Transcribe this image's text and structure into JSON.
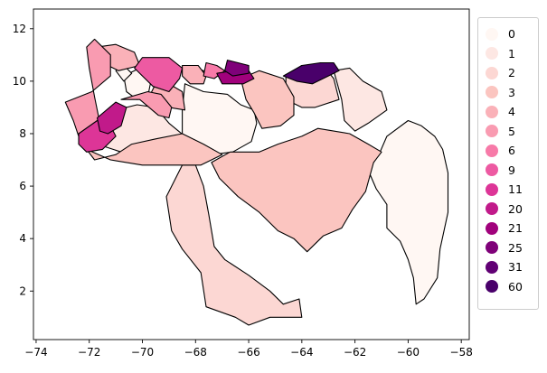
{
  "chart_data": {
    "type": "choropleth",
    "x_ticks": [
      "−74",
      "−72",
      "−70",
      "−68",
      "−66",
      "−64",
      "−62",
      "−60",
      "−58"
    ],
    "y_ticks": [
      "2",
      "4",
      "6",
      "8",
      "10",
      "12"
    ],
    "xlim": [
      -74.1,
      -57.7
    ],
    "ylim": [
      0.15,
      12.75
    ],
    "legend": {
      "placement": "center-right",
      "entries": [
        {
          "label": "0",
          "color": "#fff7f3"
        },
        {
          "label": "1",
          "color": "#fde7e3"
        },
        {
          "label": "2",
          "color": "#fcd7d3"
        },
        {
          "label": "3",
          "color": "#fbc5c0"
        },
        {
          "label": "4",
          "color": "#fab1b8"
        },
        {
          "label": "5",
          "color": "#f99bb1"
        },
        {
          "label": "6",
          "color": "#f77aa8"
        },
        {
          "label": "9",
          "color": "#ed5aa2"
        },
        {
          "label": "11",
          "color": "#dd3597"
        },
        {
          "label": "20",
          "color": "#c11a8a"
        },
        {
          "label": "21",
          "color": "#a1017c"
        },
        {
          "label": "25",
          "color": "#7f0179"
        },
        {
          "label": "31",
          "color": "#610074"
        },
        {
          "label": "60",
          "color": "#49006a"
        }
      ]
    },
    "regions": [
      {
        "label": "0",
        "points": [
          [
            -68.4,
            9.9
          ],
          [
            -67.7,
            9.6
          ],
          [
            -66.8,
            9.5
          ],
          [
            -66.3,
            9.1
          ],
          [
            -65.8,
            8.9
          ],
          [
            -65.7,
            8.4
          ],
          [
            -65.9,
            7.7
          ],
          [
            -66.6,
            7.3
          ],
          [
            -67.4,
            7.2
          ],
          [
            -68.1,
            7.3
          ],
          [
            -68.5,
            7.9
          ],
          [
            -68.5,
            8.9
          ]
        ]
      },
      {
        "label": "0",
        "points": [
          [
            -60.8,
            7.9
          ],
          [
            -60.0,
            8.5
          ],
          [
            -59.5,
            8.3
          ],
          [
            -59.0,
            7.9
          ],
          [
            -58.7,
            7.4
          ],
          [
            -58.5,
            6.5
          ],
          [
            -58.5,
            5.0
          ],
          [
            -58.8,
            3.6
          ],
          [
            -58.9,
            2.5
          ],
          [
            -59.4,
            1.7
          ],
          [
            -59.7,
            1.5
          ],
          [
            -59.8,
            2.5
          ],
          [
            -60.0,
            3.2
          ],
          [
            -60.3,
            3.9
          ],
          [
            -60.8,
            4.4
          ],
          [
            -60.8,
            5.3
          ],
          [
            -61.2,
            5.9
          ],
          [
            -61.5,
            6.6
          ],
          [
            -61.1,
            7.2
          ]
        ]
      },
      {
        "label": "0",
        "points": [
          [
            -70.7,
            10.2
          ],
          [
            -70.1,
            10.5
          ],
          [
            -69.7,
            9.9
          ],
          [
            -69.8,
            9.4
          ],
          [
            -70.2,
            9.3
          ],
          [
            -70.6,
            9.6
          ]
        ]
      },
      {
        "label": "0",
        "points": [
          [
            -71.0,
            10.4
          ],
          [
            -70.7,
            10.6
          ],
          [
            -70.4,
            10.3
          ],
          [
            -70.7,
            10.0
          ]
        ]
      },
      {
        "label": "1",
        "points": [
          [
            -71.7,
            7.6
          ],
          [
            -70.8,
            7.3
          ],
          [
            -69.8,
            7.2
          ],
          [
            -69.0,
            7.6
          ],
          [
            -68.4,
            7.9
          ],
          [
            -69.0,
            8.4
          ],
          [
            -69.5,
            9.0
          ],
          [
            -70.2,
            9.1
          ],
          [
            -71.0,
            8.9
          ],
          [
            -71.7,
            8.3
          ]
        ]
      },
      {
        "label": "1",
        "points": [
          [
            -62.8,
            10.4
          ],
          [
            -62.2,
            10.5
          ],
          [
            -61.7,
            10.0
          ],
          [
            -61.0,
            9.6
          ],
          [
            -60.8,
            8.9
          ],
          [
            -61.5,
            8.4
          ],
          [
            -62.0,
            8.1
          ],
          [
            -62.4,
            8.5
          ],
          [
            -62.5,
            9.3
          ]
        ]
      },
      {
        "label": "1",
        "points": [
          [
            -68.4,
            10.3
          ],
          [
            -68.0,
            10.5
          ],
          [
            -67.7,
            10.4
          ],
          [
            -67.8,
            10.1
          ],
          [
            -68.1,
            10.0
          ]
        ]
      },
      {
        "label": "2",
        "points": [
          [
            -68.5,
            6.8
          ],
          [
            -68.0,
            6.8
          ],
          [
            -67.7,
            6.0
          ],
          [
            -67.5,
            4.9
          ],
          [
            -67.3,
            3.7
          ],
          [
            -66.9,
            3.2
          ],
          [
            -66.0,
            2.6
          ],
          [
            -65.2,
            2.0
          ],
          [
            -64.7,
            1.5
          ],
          [
            -64.1,
            1.7
          ],
          [
            -64.0,
            1.0
          ],
          [
            -65.2,
            1.0
          ],
          [
            -66.0,
            0.7
          ],
          [
            -66.5,
            1.0
          ],
          [
            -67.6,
            1.4
          ],
          [
            -67.8,
            2.7
          ],
          [
            -68.5,
            3.6
          ],
          [
            -68.9,
            4.3
          ],
          [
            -69.1,
            5.6
          ],
          [
            -68.8,
            6.2
          ]
        ]
      },
      {
        "label": "2",
        "points": [
          [
            -64.6,
            10.2
          ],
          [
            -64.0,
            10.6
          ],
          [
            -63.2,
            10.6
          ],
          [
            -62.8,
            10.1
          ],
          [
            -62.6,
            9.3
          ],
          [
            -63.5,
            9.0
          ],
          [
            -64.0,
            9.0
          ],
          [
            -64.6,
            9.3
          ]
        ]
      },
      {
        "label": "3",
        "points": [
          [
            -66.7,
            7.3
          ],
          [
            -65.6,
            7.3
          ],
          [
            -64.9,
            7.6
          ],
          [
            -64.0,
            7.9
          ],
          [
            -63.4,
            8.2
          ],
          [
            -62.2,
            8.0
          ],
          [
            -61.5,
            7.6
          ],
          [
            -61.0,
            7.3
          ],
          [
            -61.3,
            6.9
          ],
          [
            -61.6,
            5.8
          ],
          [
            -62.1,
            5.1
          ],
          [
            -62.5,
            4.4
          ],
          [
            -63.2,
            4.1
          ],
          [
            -63.8,
            3.5
          ],
          [
            -64.3,
            4.0
          ],
          [
            -64.9,
            4.3
          ],
          [
            -65.6,
            5.0
          ],
          [
            -66.4,
            5.6
          ],
          [
            -67.1,
            6.3
          ],
          [
            -67.4,
            6.9
          ]
        ]
      },
      {
        "label": "3",
        "points": [
          [
            -72.1,
            7.4
          ],
          [
            -71.2,
            7.0
          ],
          [
            -70.0,
            6.8
          ],
          [
            -68.8,
            6.8
          ],
          [
            -67.8,
            6.8
          ],
          [
            -67.0,
            7.2
          ],
          [
            -67.7,
            7.6
          ],
          [
            -68.5,
            8.0
          ],
          [
            -69.5,
            7.8
          ],
          [
            -70.4,
            7.6
          ],
          [
            -71.0,
            7.2
          ],
          [
            -71.8,
            7.0
          ]
        ]
      },
      {
        "label": "3",
        "points": [
          [
            -66.3,
            10.1
          ],
          [
            -65.6,
            10.4
          ],
          [
            -64.7,
            10.1
          ],
          [
            -64.3,
            9.4
          ],
          [
            -64.3,
            8.7
          ],
          [
            -64.8,
            8.3
          ],
          [
            -65.5,
            8.2
          ],
          [
            -65.8,
            8.8
          ],
          [
            -66.1,
            9.3
          ]
        ]
      },
      {
        "label": "4",
        "points": [
          [
            -69.8,
            9.3
          ],
          [
            -69.0,
            9.0
          ],
          [
            -68.4,
            8.9
          ],
          [
            -68.5,
            9.6
          ],
          [
            -69.0,
            9.9
          ],
          [
            -69.5,
            9.9
          ]
        ]
      },
      {
        "label": "4",
        "points": [
          [
            -71.7,
            11.3
          ],
          [
            -71.0,
            11.4
          ],
          [
            -70.3,
            11.1
          ],
          [
            -70.1,
            10.6
          ],
          [
            -70.9,
            10.4
          ],
          [
            -71.5,
            10.7
          ]
        ]
      },
      {
        "label": "4",
        "points": [
          [
            -68.5,
            10.6
          ],
          [
            -67.9,
            10.6
          ],
          [
            -67.6,
            10.2
          ],
          [
            -67.7,
            9.9
          ],
          [
            -68.2,
            9.9
          ],
          [
            -68.5,
            10.2
          ]
        ]
      },
      {
        "label": "5",
        "points": [
          [
            -72.9,
            9.2
          ],
          [
            -71.9,
            9.6
          ],
          [
            -71.2,
            10.2
          ],
          [
            -71.2,
            11.0
          ],
          [
            -71.8,
            11.6
          ],
          [
            -72.1,
            11.3
          ],
          [
            -72.0,
            10.5
          ],
          [
            -71.8,
            9.4
          ],
          [
            -71.6,
            8.4
          ],
          [
            -71.8,
            7.8
          ],
          [
            -72.4,
            7.9
          ],
          [
            -72.6,
            8.5
          ]
        ]
      },
      {
        "label": "5",
        "points": [
          [
            -70.8,
            9.3
          ],
          [
            -70.1,
            9.3
          ],
          [
            -69.4,
            8.7
          ],
          [
            -69.0,
            8.6
          ],
          [
            -68.9,
            9.0
          ],
          [
            -69.3,
            9.5
          ],
          [
            -69.8,
            9.6
          ]
        ]
      },
      {
        "label": "6",
        "points": [
          [
            -67.6,
            10.7
          ],
          [
            -67.2,
            10.6
          ],
          [
            -66.9,
            10.4
          ],
          [
            -67.3,
            10.1
          ],
          [
            -67.7,
            10.2
          ]
        ]
      },
      {
        "label": "9",
        "points": [
          [
            -70.0,
            10.9
          ],
          [
            -69.0,
            10.9
          ],
          [
            -68.5,
            10.5
          ],
          [
            -68.6,
            10.1
          ],
          [
            -69.0,
            9.6
          ],
          [
            -69.6,
            9.8
          ],
          [
            -70.0,
            10.2
          ],
          [
            -70.3,
            10.5
          ]
        ]
      },
      {
        "label": "11",
        "points": [
          [
            -72.4,
            8.0
          ],
          [
            -71.7,
            8.5
          ],
          [
            -71.2,
            8.3
          ],
          [
            -71.0,
            7.9
          ],
          [
            -71.5,
            7.4
          ],
          [
            -72.1,
            7.3
          ],
          [
            -72.4,
            7.6
          ]
        ]
      },
      {
        "label": "20",
        "points": [
          [
            -71.7,
            8.6
          ],
          [
            -71.0,
            9.2
          ],
          [
            -70.6,
            9.0
          ],
          [
            -70.8,
            8.3
          ],
          [
            -71.3,
            8.0
          ],
          [
            -71.6,
            8.1
          ]
        ]
      },
      {
        "label": "21",
        "points": [
          [
            -67.2,
            10.3
          ],
          [
            -66.6,
            10.4
          ],
          [
            -66.0,
            10.4
          ],
          [
            -65.8,
            10.1
          ],
          [
            -66.2,
            9.9
          ],
          [
            -67.0,
            9.9
          ]
        ]
      },
      {
        "label": "25",
        "points": [
          [
            -66.8,
            10.8
          ],
          [
            -66.0,
            10.6
          ],
          [
            -66.0,
            10.3
          ],
          [
            -66.6,
            10.2
          ],
          [
            -66.9,
            10.4
          ]
        ]
      },
      {
        "label": "60",
        "points": [
          [
            -64.7,
            10.2
          ],
          [
            -64.0,
            10.6
          ],
          [
            -63.3,
            10.7
          ],
          [
            -62.8,
            10.7
          ],
          [
            -62.6,
            10.4
          ],
          [
            -63.0,
            10.2
          ],
          [
            -63.6,
            9.9
          ],
          [
            -64.2,
            10.0
          ]
        ]
      }
    ]
  }
}
